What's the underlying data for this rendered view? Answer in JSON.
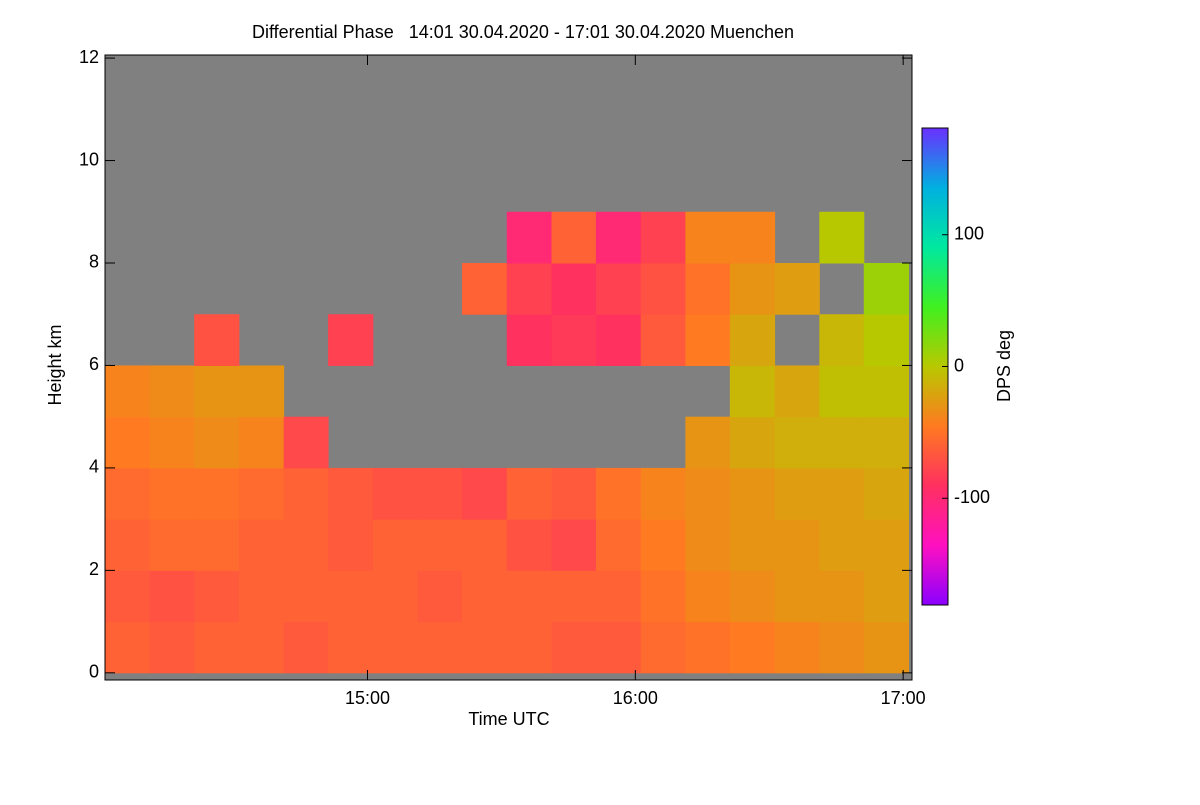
{
  "chart_data": {
    "type": "heatmap",
    "title": "Differential Phase   14:01 30.04.2020 - 17:01 30.04.2020 Muenchen",
    "x_label": "Time UTC",
    "y_label": "Height km",
    "colorbar_label": "DPS deg",
    "xlim": [
      14.02,
      17.033
    ],
    "ylim": [
      -0.14,
      12.06
    ],
    "zlim": [
      -181,
      181
    ],
    "xticks": [
      {
        "value": 15,
        "label": "15:00"
      },
      {
        "value": 16,
        "label": "16:00"
      },
      {
        "value": 17,
        "label": "17:00"
      }
    ],
    "yticks": [
      0,
      2,
      4,
      6,
      8,
      10,
      12
    ],
    "zticks": [
      -100,
      0,
      100
    ],
    "colormap": [
      "#8a00ff",
      "#ff10c0",
      "#ff3060",
      "#ff7a20",
      "#b8c800",
      "#40f020",
      "#00e8a0",
      "#00b0e0",
      "#6a30ff"
    ],
    "missing_color": "#808080",
    "xbins": [
      14.02,
      14.187,
      14.353,
      14.52,
      14.687,
      14.853,
      15.02,
      15.187,
      15.353,
      15.52,
      15.687,
      15.853,
      16.02,
      16.187,
      16.353,
      16.52,
      16.687,
      16.853,
      17.02
    ],
    "ybins": [
      0,
      1,
      2,
      3,
      4,
      5,
      6,
      7,
      8,
      9,
      10,
      11,
      12
    ],
    "values": [
      [
        -60,
        -65,
        -60,
        -60,
        -65,
        -60,
        -60,
        -60,
        -60,
        -60,
        -65,
        -65,
        -55,
        -50,
        -45,
        -40,
        -35,
        -30
      ],
      [
        -65,
        -70,
        -65,
        -60,
        -60,
        -60,
        -60,
        -65,
        -60,
        -60,
        -60,
        -60,
        -50,
        -40,
        -35,
        -30,
        -30,
        -25
      ],
      [
        -60,
        -55,
        -55,
        -60,
        -60,
        -65,
        -60,
        -60,
        -60,
        -70,
        -75,
        -55,
        -45,
        -35,
        -30,
        -30,
        -25,
        -25
      ],
      [
        -55,
        -50,
        -50,
        -55,
        -60,
        -65,
        -70,
        -70,
        -75,
        -60,
        -65,
        -50,
        -40,
        -35,
        -30,
        -25,
        -25,
        -20
      ],
      [
        -45,
        -40,
        -35,
        -40,
        -75,
        null,
        null,
        null,
        null,
        null,
        null,
        null,
        null,
        -30,
        -20,
        -15,
        -15,
        -15
      ],
      [
        -40,
        -35,
        -30,
        -30,
        null,
        null,
        null,
        null,
        null,
        null,
        null,
        null,
        null,
        null,
        -10,
        -20,
        -5,
        -5
      ],
      [
        null,
        null,
        -70,
        null,
        null,
        -80,
        null,
        null,
        null,
        -90,
        -85,
        -90,
        -65,
        -45,
        -20,
        null,
        -10,
        0
      ],
      [
        null,
        null,
        null,
        null,
        null,
        null,
        null,
        null,
        -60,
        -80,
        -90,
        -80,
        -70,
        -50,
        -30,
        -25,
        null,
        10
      ],
      [
        null,
        null,
        null,
        null,
        null,
        null,
        null,
        null,
        null,
        -100,
        -60,
        -100,
        -80,
        -40,
        -40,
        null,
        0,
        null
      ],
      [
        null,
        null,
        null,
        null,
        null,
        null,
        null,
        null,
        null,
        null,
        null,
        null,
        null,
        null,
        null,
        null,
        null,
        null
      ],
      [
        null,
        null,
        null,
        null,
        null,
        null,
        null,
        null,
        null,
        null,
        null,
        null,
        null,
        null,
        null,
        null,
        null,
        null
      ],
      [
        null,
        null,
        null,
        null,
        null,
        null,
        null,
        null,
        null,
        null,
        null,
        null,
        null,
        null,
        null,
        null,
        null,
        null
      ]
    ]
  }
}
